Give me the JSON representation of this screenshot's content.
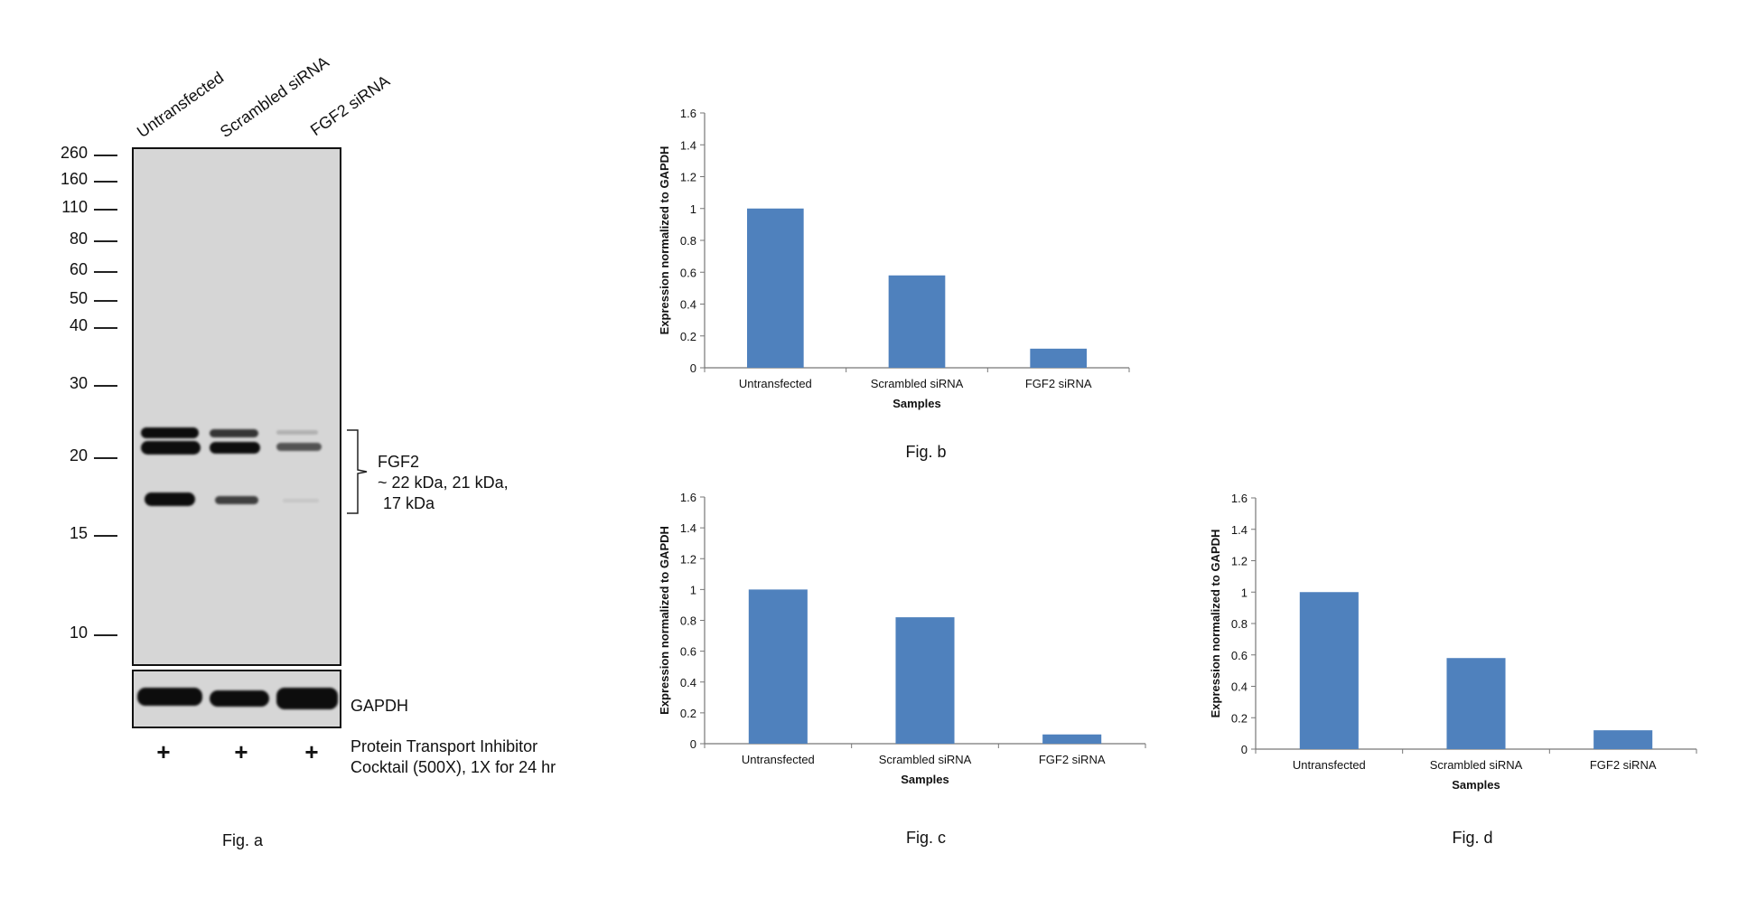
{
  "figure_a": {
    "caption": "Fig. a",
    "lanes": [
      "Untransfected",
      "Scrambled siRNA",
      "FGF2 siRNA"
    ],
    "mw_markers": [
      "260",
      "160",
      "110",
      "80",
      "60",
      "50",
      "40",
      "30",
      "20",
      "15",
      "10"
    ],
    "target_label": "FGF2",
    "target_sizes_line1": "~ 22 kDa, 21 kDa,",
    "target_sizes_line2": "17 kDa",
    "loading_control": "GAPDH",
    "treatment_marks": [
      "+",
      "+",
      "+"
    ],
    "treatment_line1": "Protein Transport Inhibitor",
    "treatment_line2": "Cocktail (500X), 1X for 24 hr",
    "band_intensity": {
      "band_22kDa": [
        1.0,
        0.7,
        0.2
      ],
      "band_21kDa": [
        1.0,
        0.85,
        0.55
      ],
      "band_17kDa": [
        1.0,
        0.6,
        0.08
      ],
      "gapdh": [
        1.0,
        1.0,
        1.0
      ]
    }
  },
  "chart_data": [
    {
      "type": "bar",
      "caption": "Fig. b",
      "categories": [
        "Untransfected",
        "Scrambled siRNA",
        "FGF2 siRNA"
      ],
      "values": [
        1.0,
        0.58,
        0.12
      ],
      "xlabel": "Samples",
      "ylabel": "Expression normalized to GAPDH",
      "ylim": [
        0,
        1.6
      ],
      "yticks": [
        "0",
        "0.2",
        "0.4",
        "0.6",
        "0.8",
        "1",
        "1.2",
        "1.4",
        "1.6"
      ],
      "ytick_values": [
        0,
        0.2,
        0.4,
        0.6,
        0.8,
        1,
        1.2,
        1.4,
        1.6
      ],
      "bar_color": "#4f81bd",
      "grid": false
    },
    {
      "type": "bar",
      "caption": "Fig. c",
      "categories": [
        "Untransfected",
        "Scrambled siRNA",
        "FGF2 siRNA"
      ],
      "values": [
        1.0,
        0.82,
        0.06
      ],
      "xlabel": "Samples",
      "ylabel": "Expression normalized to GAPDH",
      "ylim": [
        0,
        1.6
      ],
      "yticks": [
        "0",
        "0.2",
        "0.4",
        "0.6",
        "0.8",
        "1",
        "1.2",
        "1.4",
        "1.6"
      ],
      "ytick_values": [
        0,
        0.2,
        0.4,
        0.6,
        0.8,
        1,
        1.2,
        1.4,
        1.6
      ],
      "bar_color": "#4f81bd",
      "grid": false
    },
    {
      "type": "bar",
      "caption": "Fig. d",
      "categories": [
        "Untransfected",
        "Scrambled siRNA",
        "FGF2 siRNA"
      ],
      "values": [
        1.0,
        0.58,
        0.12
      ],
      "xlabel": "Samples",
      "ylabel": "Expression normalized to GAPDH",
      "ylim": [
        0,
        1.6
      ],
      "yticks": [
        "0",
        "0.2",
        "0.4",
        "0.6",
        "0.8",
        "1",
        "1.2",
        "1.4",
        "1.6"
      ],
      "ytick_values": [
        0,
        0.2,
        0.4,
        0.6,
        0.8,
        1,
        1.2,
        1.4,
        1.6
      ],
      "bar_color": "#4f81bd",
      "grid": false
    }
  ]
}
